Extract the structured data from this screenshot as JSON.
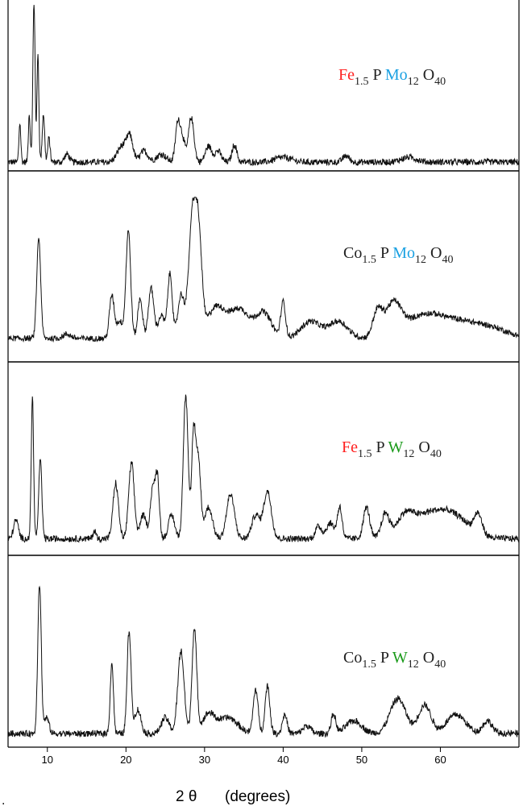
{
  "colors": {
    "trace": "#111111",
    "fe": "#ff2020",
    "mo": "#1ba1e2",
    "w": "#1a9a1a",
    "text": "#222222"
  },
  "figure": {
    "xlabel_symbol": "2 θ",
    "xlabel_unit": "(degrees)",
    "left_mark": "."
  },
  "chart_data": [
    {
      "type": "line",
      "panel": 1,
      "label": {
        "metal": "Fe",
        "metal_sub": "1.5",
        "p": "P",
        "addenda": "Mo",
        "addenda_sub": "12",
        "oxygen": "O",
        "oxygen_sub": "40"
      },
      "xlim": [
        5,
        70
      ],
      "xticks": [
        10,
        20,
        30,
        40,
        50,
        60
      ],
      "tick_labels": [
        "10",
        "20",
        "30",
        "40",
        "50",
        "60"
      ],
      "grid": false,
      "baseline": 0.04,
      "peaks": [
        [
          6.5,
          0.25,
          0.12
        ],
        [
          7.7,
          0.3,
          0.12
        ],
        [
          8.3,
          1.0,
          0.14
        ],
        [
          8.8,
          0.68,
          0.12
        ],
        [
          9.5,
          0.3,
          0.15
        ],
        [
          10.2,
          0.15,
          0.15
        ],
        [
          12.5,
          0.05,
          0.3
        ],
        [
          19.5,
          0.1,
          0.6
        ],
        [
          20.5,
          0.15,
          0.4
        ],
        [
          22.3,
          0.07,
          0.5
        ],
        [
          24.5,
          0.05,
          0.6
        ],
        [
          26.6,
          0.25,
          0.3
        ],
        [
          27.2,
          0.14,
          0.3
        ],
        [
          28.3,
          0.28,
          0.35
        ],
        [
          30.5,
          0.1,
          0.4
        ],
        [
          31.7,
          0.07,
          0.4
        ],
        [
          33.8,
          0.11,
          0.3
        ],
        [
          40,
          0.03,
          1.0
        ],
        [
          48,
          0.04,
          0.4
        ],
        [
          56,
          0.03,
          1.0
        ]
      ]
    },
    {
      "type": "line",
      "panel": 2,
      "label": {
        "metal": "Co",
        "metal_sub": "1.5",
        "p": "P",
        "addenda": "Mo",
        "addenda_sub": "12",
        "oxygen": "O",
        "oxygen_sub": "40"
      },
      "xlim": [
        5,
        70
      ],
      "xticks": [
        10,
        20,
        30,
        40,
        50,
        60
      ],
      "tick_labels": [
        "10",
        "20",
        "30",
        "40",
        "50",
        "60"
      ],
      "grid": false,
      "baseline": 0.04,
      "peaks": [
        [
          8.9,
          0.7,
          0.25
        ],
        [
          12.5,
          0.03,
          0.5
        ],
        [
          18.2,
          0.3,
          0.3
        ],
        [
          19.2,
          0.12,
          0.4
        ],
        [
          20.3,
          0.75,
          0.3
        ],
        [
          21.8,
          0.28,
          0.3
        ],
        [
          23.2,
          0.35,
          0.35
        ],
        [
          24.5,
          0.16,
          0.4
        ],
        [
          25.6,
          0.45,
          0.3
        ],
        [
          27.0,
          0.3,
          0.4
        ],
        [
          28.5,
          0.88,
          0.5
        ],
        [
          29.3,
          0.55,
          0.4
        ],
        [
          31.5,
          0.22,
          1.2
        ],
        [
          34.5,
          0.2,
          1.2
        ],
        [
          37.5,
          0.18,
          1.0
        ],
        [
          40.0,
          0.25,
          0.3
        ],
        [
          43.5,
          0.12,
          1.2
        ],
        [
          47.0,
          0.12,
          1.2
        ],
        [
          52.0,
          0.18,
          0.6
        ],
        [
          54.0,
          0.22,
          1.0
        ],
        [
          58.0,
          0.16,
          2.5
        ],
        [
          63.0,
          0.1,
          2.5
        ],
        [
          67.0,
          0.05,
          2.0
        ]
      ]
    },
    {
      "type": "line",
      "panel": 3,
      "label": {
        "metal": "Fe",
        "metal_sub": "1.5",
        "p": "P",
        "addenda": "W",
        "addenda_sub": "12",
        "oxygen": "O",
        "oxygen_sub": "40"
      },
      "xlim": [
        5,
        70
      ],
      "xticks": [
        10,
        20,
        30,
        40,
        50,
        60
      ],
      "tick_labels": [
        "10",
        "20",
        "30",
        "40",
        "50",
        "60"
      ],
      "grid": false,
      "baseline": 0.08,
      "peaks": [
        [
          6.0,
          0.12,
          0.3
        ],
        [
          8.1,
          0.9,
          0.15
        ],
        [
          9.1,
          0.5,
          0.2
        ],
        [
          16.0,
          0.05,
          0.2
        ],
        [
          18.7,
          0.35,
          0.35
        ],
        [
          20.7,
          0.48,
          0.35
        ],
        [
          22.2,
          0.15,
          0.4
        ],
        [
          23.4,
          0.32,
          0.3
        ],
        [
          24.0,
          0.38,
          0.25
        ],
        [
          25.8,
          0.15,
          0.4
        ],
        [
          27.6,
          0.92,
          0.3
        ],
        [
          28.6,
          0.65,
          0.25
        ],
        [
          29.2,
          0.5,
          0.3
        ],
        [
          30.5,
          0.2,
          0.5
        ],
        [
          33.3,
          0.28,
          0.5
        ],
        [
          36.5,
          0.15,
          0.5
        ],
        [
          38.0,
          0.3,
          0.5
        ],
        [
          44.5,
          0.08,
          0.4
        ],
        [
          46.0,
          0.1,
          0.5
        ],
        [
          47.2,
          0.2,
          0.3
        ],
        [
          50.6,
          0.2,
          0.4
        ],
        [
          53.0,
          0.15,
          0.5
        ],
        [
          55.5,
          0.1,
          1.0
        ],
        [
          58.5,
          0.15,
          2.5
        ],
        [
          62.0,
          0.1,
          2.0
        ],
        [
          64.8,
          0.12,
          0.5
        ]
      ]
    },
    {
      "type": "line",
      "panel": 4,
      "label": {
        "metal": "Co",
        "metal_sub": "1.5",
        "p": "P",
        "addenda": "W",
        "addenda_sub": "12",
        "oxygen": "O",
        "oxygen_sub": "40"
      },
      "xlim": [
        5,
        70
      ],
      "xticks": [
        10,
        20,
        30,
        40,
        50,
        60
      ],
      "tick_labels": [
        "10",
        "20",
        "30",
        "40",
        "50",
        "60"
      ],
      "grid": false,
      "baseline": 0.05,
      "peaks": [
        [
          9.0,
          0.95,
          0.22
        ],
        [
          9.9,
          0.1,
          0.3
        ],
        [
          18.2,
          0.45,
          0.2
        ],
        [
          20.4,
          0.65,
          0.25
        ],
        [
          21.5,
          0.15,
          0.4
        ],
        [
          25.0,
          0.1,
          0.5
        ],
        [
          27.0,
          0.52,
          0.4
        ],
        [
          28.7,
          0.65,
          0.3
        ],
        [
          30.5,
          0.12,
          0.8
        ],
        [
          33.0,
          0.1,
          1.2
        ],
        [
          36.5,
          0.28,
          0.3
        ],
        [
          38.0,
          0.3,
          0.3
        ],
        [
          40.2,
          0.12,
          0.3
        ],
        [
          43.0,
          0.05,
          0.5
        ],
        [
          46.4,
          0.12,
          0.3
        ],
        [
          49.0,
          0.08,
          1.0
        ],
        [
          54.6,
          0.22,
          1.0
        ],
        [
          58.0,
          0.18,
          0.8
        ],
        [
          62.0,
          0.12,
          1.2
        ],
        [
          66.0,
          0.08,
          0.6
        ]
      ]
    }
  ]
}
